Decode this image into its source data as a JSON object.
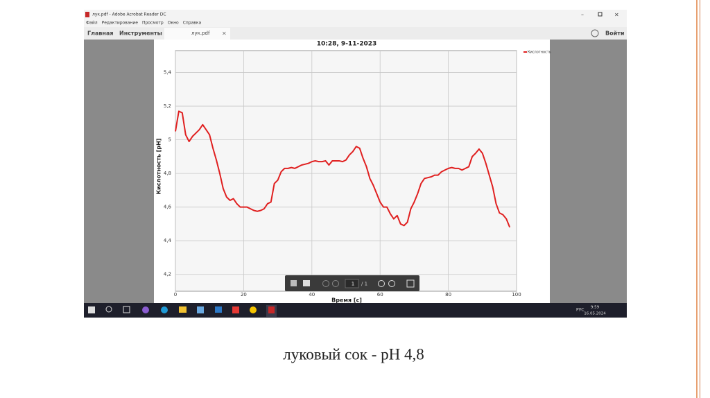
{
  "window": {
    "title": "лук.pdf - Adobe Acrobat Reader DC",
    "menu": [
      "Файл",
      "Редактирование",
      "Просмотр",
      "Окно",
      "Справка"
    ],
    "toolbar": {
      "home": "Главная",
      "tools": "Инструменты",
      "tab": "лук.pdf",
      "login": "Войти"
    }
  },
  "chart_data": {
    "type": "line",
    "title": "10:28, 9-11-2023",
    "x_label": "Время [с]",
    "y_label": "Кислотность [pH]",
    "x": [
      0,
      1,
      2,
      3,
      4,
      5,
      6,
      7,
      8,
      9,
      10,
      11,
      12,
      13,
      14,
      15,
      16,
      17,
      18,
      19,
      20,
      21,
      22,
      23,
      24,
      25,
      26,
      27,
      28,
      29,
      30,
      31,
      32,
      33,
      34,
      35,
      36,
      37,
      38,
      39,
      40,
      41,
      42,
      43,
      44,
      45,
      46,
      47,
      48,
      49,
      50,
      51,
      52,
      53,
      54,
      55,
      56,
      57,
      58,
      59,
      60,
      61,
      62,
      63,
      64,
      65,
      66,
      67,
      68,
      69,
      70,
      71,
      72,
      73,
      74,
      75,
      76,
      77,
      78,
      79,
      80,
      81,
      82,
      83,
      84,
      85,
      86,
      87,
      88,
      89,
      90,
      91,
      92,
      93,
      94,
      95,
      96,
      97,
      98
    ],
    "series": [
      {
        "name": "Кислотность",
        "color": "#e02020",
        "values": [
          5.05,
          5.17,
          5.16,
          5.03,
          4.99,
          5.02,
          5.04,
          5.06,
          5.09,
          5.06,
          5.03,
          4.95,
          4.88,
          4.8,
          4.71,
          4.66,
          4.64,
          4.65,
          4.62,
          4.6,
          4.6,
          4.6,
          4.59,
          4.58,
          4.575,
          4.58,
          4.59,
          4.62,
          4.63,
          4.74,
          4.76,
          4.81,
          4.83,
          4.83,
          4.835,
          4.83,
          4.84,
          4.85,
          4.855,
          4.86,
          4.87,
          4.875,
          4.87,
          4.87,
          4.875,
          4.85,
          4.875,
          4.875,
          4.875,
          4.87,
          4.88,
          4.91,
          4.93,
          4.96,
          4.95,
          4.89,
          4.84,
          4.77,
          4.73,
          4.68,
          4.63,
          4.6,
          4.6,
          4.56,
          4.53,
          4.55,
          4.5,
          4.49,
          4.51,
          4.59,
          4.63,
          4.68,
          4.74,
          4.77,
          4.775,
          4.78,
          4.79,
          4.79,
          4.81,
          4.82,
          4.83,
          4.835,
          4.83,
          4.83,
          4.82,
          4.83,
          4.84,
          4.9,
          4.92,
          4.945,
          4.92,
          4.86,
          4.79,
          4.72,
          4.62,
          4.565,
          4.555,
          4.53,
          4.48
        ]
      }
    ],
    "xlim": [
      0,
      100
    ],
    "xticks": [
      0,
      20,
      40,
      60,
      80,
      100
    ],
    "ylim": [
      4.1,
      5.53
    ],
    "yticks": [
      {
        "value": 4.2,
        "label": "4,2"
      },
      {
        "value": 4.4,
        "label": "4,4"
      },
      {
        "value": 4.6,
        "label": "4,6"
      },
      {
        "value": 4.8,
        "label": "4,8"
      },
      5,
      {
        "value": 5.2,
        "label": "5,2"
      },
      {
        "value": 5.4,
        "label": "5,4"
      }
    ],
    "grid": true,
    "legend": "top-right"
  },
  "viewer_toolbar": {
    "page": "1",
    "total": "/ 1"
  },
  "taskbar": {
    "lang": "РУС",
    "time": "9:59",
    "date": "16.05.2024"
  },
  "caption": "луковый сок - рН 4,8"
}
